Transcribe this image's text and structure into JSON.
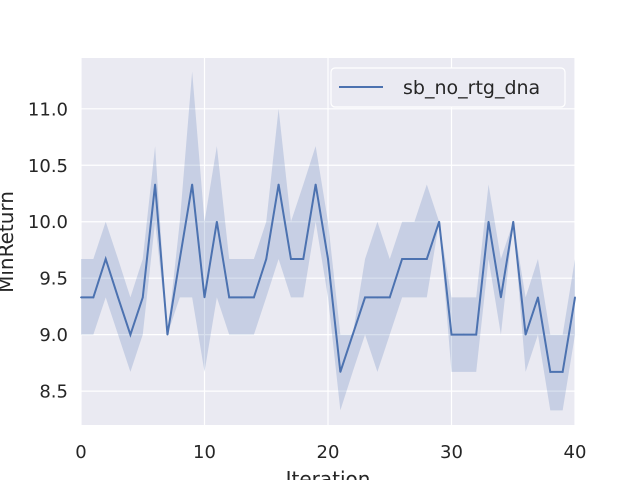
{
  "chart_data": {
    "type": "line",
    "title": "",
    "xlabel": "Iteration",
    "ylabel": "MinReturn",
    "xlim": [
      0,
      40
    ],
    "ylim": [
      8.2,
      11.45
    ],
    "x_ticks": [
      0,
      10,
      20,
      30,
      40
    ],
    "y_ticks": [
      8.5,
      9.0,
      9.5,
      10.0,
      10.5,
      11.0
    ],
    "x_tick_labels": [
      "0",
      "10",
      "20",
      "30",
      "40"
    ],
    "y_tick_labels": [
      "8.5",
      "9.0",
      "9.5",
      "10.0",
      "10.5",
      "11.0"
    ],
    "grid": true,
    "legend_position": "top-right",
    "series": [
      {
        "name": "sb_no_rtg_dna",
        "color": "#4c72b0",
        "x": [
          0,
          1,
          2,
          3,
          4,
          5,
          6,
          7,
          8,
          9,
          10,
          11,
          12,
          13,
          14,
          15,
          16,
          17,
          18,
          19,
          20,
          21,
          22,
          23,
          24,
          25,
          26,
          27,
          28,
          29,
          30,
          31,
          32,
          33,
          34,
          35,
          36,
          37,
          38,
          39,
          40
        ],
        "y": [
          9.33,
          9.33,
          9.67,
          9.33,
          9.0,
          9.33,
          10.33,
          9.0,
          9.67,
          10.33,
          9.33,
          10.0,
          9.33,
          9.33,
          9.33,
          9.67,
          10.33,
          9.67,
          9.67,
          10.33,
          9.67,
          8.67,
          9.0,
          9.33,
          9.33,
          9.33,
          9.67,
          9.67,
          9.67,
          10.0,
          9.0,
          9.0,
          9.0,
          10.0,
          9.33,
          10.0,
          9.0,
          9.33,
          8.67,
          8.67,
          9.33
        ],
        "y_lower": [
          9.0,
          9.0,
          9.33,
          9.0,
          8.67,
          9.0,
          10.0,
          9.0,
          9.33,
          9.33,
          8.67,
          9.33,
          9.0,
          9.0,
          9.0,
          9.33,
          9.67,
          9.33,
          9.33,
          10.0,
          9.33,
          8.33,
          8.67,
          9.0,
          8.67,
          9.0,
          9.33,
          9.33,
          9.33,
          10.0,
          8.67,
          8.67,
          8.67,
          9.67,
          9.0,
          10.0,
          8.67,
          9.0,
          8.33,
          8.33,
          9.0
        ],
        "y_upper": [
          9.67,
          9.67,
          10.0,
          9.67,
          9.33,
          9.67,
          10.67,
          9.0,
          10.0,
          11.33,
          10.0,
          10.67,
          9.67,
          9.67,
          9.67,
          10.0,
          11.0,
          10.0,
          10.33,
          10.67,
          10.0,
          9.0,
          9.0,
          9.67,
          10.0,
          9.67,
          10.0,
          10.0,
          10.33,
          10.0,
          9.33,
          9.33,
          9.33,
          10.33,
          9.67,
          10.0,
          9.33,
          9.67,
          9.0,
          9.0,
          9.67
        ]
      }
    ]
  },
  "colors": {
    "plot_background": "#eaeaf2",
    "grid": "#ffffff",
    "band_fill": "#4c72b0"
  }
}
